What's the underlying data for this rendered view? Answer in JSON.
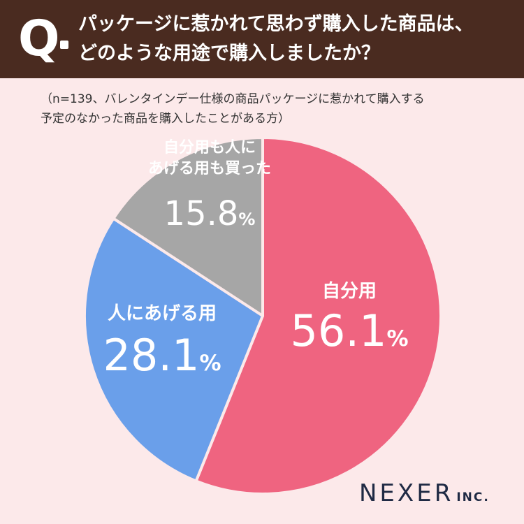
{
  "header": {
    "q_mark": "Q",
    "question_line1": "パッケージに惹かれて思わず購入した商品は、",
    "question_line2": "どのような用途で購入しましたか？"
  },
  "note": {
    "line1": "（n=139、バレンタインデー仕様の商品パッケージに惹かれて購入する",
    "line2": "予定のなかった商品を購入したことがある方）"
  },
  "chart_data": {
    "type": "pie",
    "slices": [
      {
        "label": "自分用",
        "value": 56.1,
        "color": "#ef6480",
        "text_color": "#ffffff"
      },
      {
        "label": "人にあげる用",
        "value": 28.1,
        "color": "#6a9fea",
        "text_color": "#ffffff"
      },
      {
        "label": "自分用も人に\nあげる用も買った",
        "value": 15.8,
        "color": "#a6a6a6",
        "text_color": "#ffffff"
      }
    ],
    "start": "12 o'clock",
    "direction": "clockwise",
    "unit": "%"
  },
  "logo": {
    "main": "NEXER",
    "sub": "INC."
  }
}
